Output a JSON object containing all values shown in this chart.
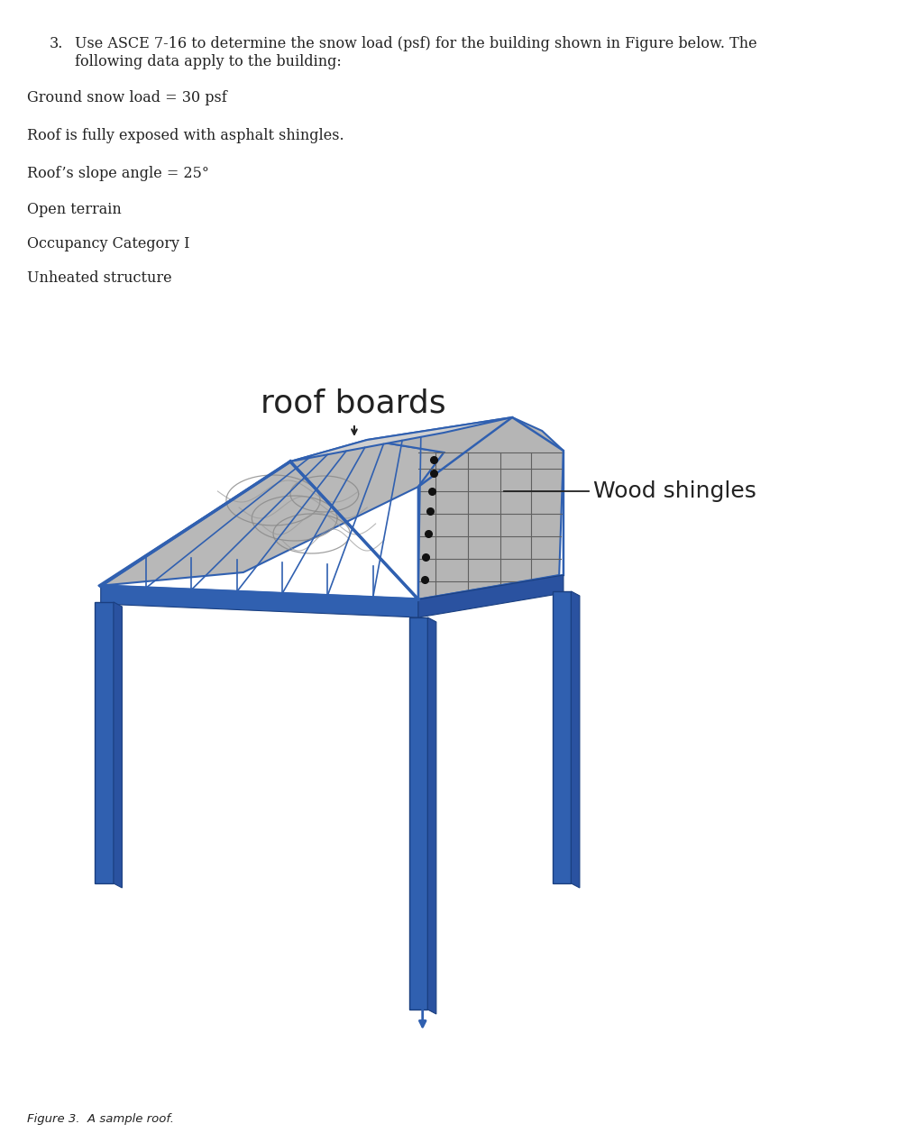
{
  "bg_color": "#ffffff",
  "title_number": "3.",
  "title_text1": "Use ASCE 7-16 to determine the snow load (psf) for the building shown in Figure below. The",
  "title_text2": "following data apply to the building:",
  "bullets": [
    "Ground snow load = 30 psf",
    "Roof is fully exposed with asphalt shingles.",
    "Roof’s slope angle = 25°",
    "Open terrain",
    "Occupancy Category I",
    "Unheated structure"
  ],
  "label_roof_boards": "roof boards",
  "label_wood_shingles": "Wood shingles",
  "figure_caption": "Figure 3.  A sample roof.",
  "blue_color": "#3060b0",
  "blue_dark": "#1a3f80",
  "blue_light": "#4a80d0",
  "gray_roof": "#b8b8b8",
  "gray_ridge": "#d0d0d0",
  "gray_shingle": "#b0b0b0",
  "text_color": "#222222",
  "black": "#000000"
}
